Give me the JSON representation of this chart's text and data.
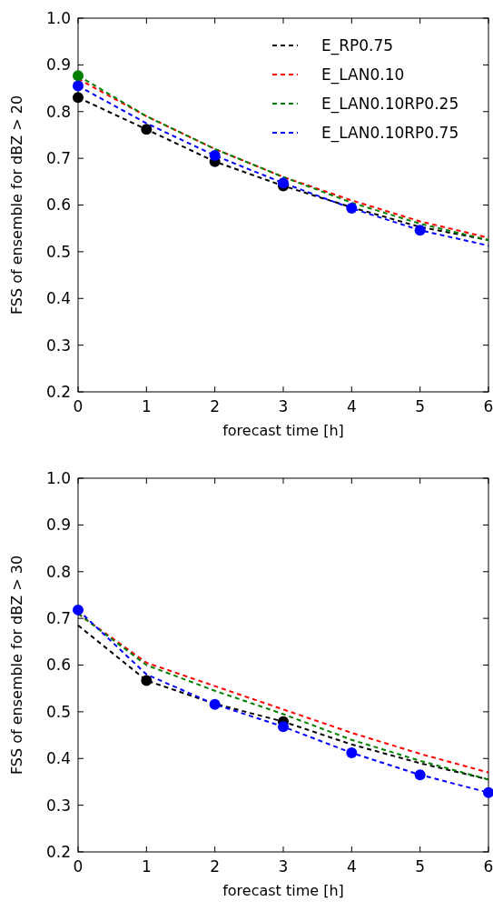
{
  "chart_data": [
    {
      "type": "line",
      "xlabel": "forecast time [h]",
      "ylabel": "FSS of ensemble for dBZ > 20",
      "x": [
        0,
        1,
        2,
        3,
        4,
        5,
        6
      ],
      "xlim": [
        0,
        6
      ],
      "xticks": [
        0,
        1,
        2,
        3,
        4,
        5,
        6
      ],
      "ylim": [
        0.2,
        1.0
      ],
      "yticks": [
        {
          "value": 0.2,
          "label": "0.2"
        },
        {
          "value": 0.3,
          "label": "0.3"
        },
        {
          "value": 0.4,
          "label": "0.4"
        },
        {
          "value": 0.5,
          "label": "0.5"
        },
        {
          "value": 0.6,
          "label": "0.6"
        },
        {
          "value": 0.7,
          "label": "0.7"
        },
        {
          "value": 0.8,
          "label": "0.8"
        },
        {
          "value": 0.9,
          "label": "0.9"
        },
        {
          "value": 1.0,
          "label": "1.0"
        }
      ],
      "grid": false,
      "legend": "top right",
      "line_style": "dashed",
      "marker": "none",
      "series": [
        {
          "name": "E_RP0.75",
          "color": "#000000",
          "values": [
            0.83,
            0.762,
            0.693,
            0.641,
            0.595,
            0.553,
            0.525
          ]
        },
        {
          "name": "E_LAN0.10",
          "color": "#ff0000",
          "values": [
            0.87,
            0.79,
            0.72,
            0.66,
            0.61,
            0.565,
            0.53
          ]
        },
        {
          "name": "E_LAN0.10RP0.25",
          "color": "#008000",
          "values": [
            0.877,
            0.79,
            0.72,
            0.66,
            0.605,
            0.56,
            0.525
          ]
        },
        {
          "name": "E_LAN0.10RP0.75",
          "color": "#0000ff",
          "values": [
            0.855,
            0.775,
            0.706,
            0.647,
            0.593,
            0.546,
            0.513
          ]
        },
        {
          "type": "scatter",
          "marker": "circle",
          "color": "#000000",
          "x": [
            0,
            1,
            2,
            3
          ],
          "values": [
            0.83,
            0.762,
            0.693,
            0.641
          ]
        },
        {
          "type": "scatter",
          "marker": "circle",
          "color": "#008000",
          "x": [
            0
          ],
          "values": [
            0.877
          ]
        },
        {
          "type": "scatter",
          "marker": "circle",
          "color": "#0000ff",
          "x": [
            0,
            2,
            3,
            4,
            5
          ],
          "values": [
            0.855,
            0.706,
            0.647,
            0.593,
            0.546
          ]
        }
      ]
    },
    {
      "type": "line",
      "xlabel": "forecast time [h]",
      "ylabel": "FSS of ensemble for dBZ > 30",
      "x": [
        0,
        1,
        2,
        3,
        4,
        5,
        6
      ],
      "xlim": [
        0,
        6
      ],
      "xticks": [
        0,
        1,
        2,
        3,
        4,
        5,
        6
      ],
      "ylim": [
        0.2,
        1.0
      ],
      "yticks": [
        {
          "value": 0.2,
          "label": "0.2"
        },
        {
          "value": 0.3,
          "label": "0.3"
        },
        {
          "value": 0.4,
          "label": "0.4"
        },
        {
          "value": 0.5,
          "label": "0.5"
        },
        {
          "value": 0.6,
          "label": "0.6"
        },
        {
          "value": 0.7,
          "label": "0.7"
        },
        {
          "value": 0.8,
          "label": "0.8"
        },
        {
          "value": 0.9,
          "label": "0.9"
        },
        {
          "value": 1.0,
          "label": "1.0"
        }
      ],
      "grid": false,
      "line_style": "dashed",
      "marker": "none",
      "series": [
        {
          "color": "#000000",
          "values": [
            0.685,
            0.567,
            0.517,
            0.479,
            0.43,
            0.39,
            0.355
          ]
        },
        {
          "color": "#ff0000",
          "values": [
            0.71,
            0.605,
            0.555,
            0.505,
            0.455,
            0.41,
            0.37
          ]
        },
        {
          "color": "#008000",
          "values": [
            0.71,
            0.6,
            0.545,
            0.495,
            0.44,
            0.395,
            0.355
          ]
        },
        {
          "color": "#0000ff",
          "values": [
            0.718,
            0.58,
            0.516,
            0.468,
            0.412,
            0.365,
            0.327
          ]
        },
        {
          "type": "scatter",
          "marker": "circle",
          "color": "#000000",
          "x": [
            1,
            3
          ],
          "values": [
            0.567,
            0.479
          ]
        },
        {
          "type": "scatter",
          "marker": "circle",
          "color": "#0000ff",
          "x": [
            0,
            2,
            3,
            4,
            5,
            6
          ],
          "values": [
            0.718,
            0.516,
            0.468,
            0.412,
            0.365,
            0.327
          ]
        }
      ]
    }
  ]
}
